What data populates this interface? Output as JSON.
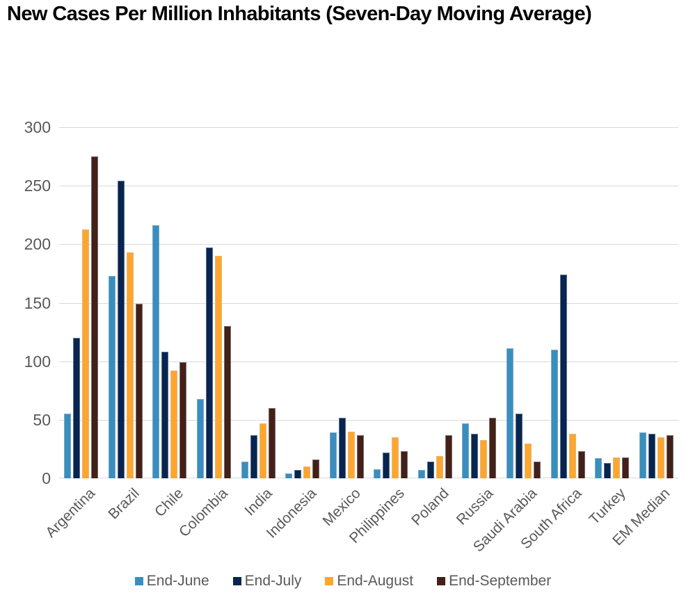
{
  "title": "New Cases Per Million Inhabitants (Seven-Day Moving Average)",
  "colors": {
    "gridline": "#d9d9d9",
    "axis_text": "#595959",
    "title_text": "#000000"
  },
  "chart_data": {
    "type": "bar",
    "title": "New Cases Per Million Inhabitants (Seven-Day Moving Average)",
    "categories": [
      "Argentina",
      "Brazil",
      "Chile",
      "Colombia",
      "India",
      "Indonesia",
      "Mexico",
      "Philippines",
      "Poland",
      "Russia",
      "Saudi Arabia",
      "South Africa",
      "Turkey",
      "EM Median"
    ],
    "series": [
      {
        "name": "End-June",
        "color": "#3a8ebe",
        "values": [
          55,
          173,
          216,
          68,
          14,
          4,
          39,
          8,
          7,
          47,
          111,
          110,
          17,
          39
        ]
      },
      {
        "name": "End-July",
        "color": "#07254f",
        "values": [
          120,
          254,
          108,
          197,
          37,
          7,
          52,
          22,
          14,
          38,
          55,
          174,
          13,
          38
        ]
      },
      {
        "name": "End-August",
        "color": "#fda62f",
        "values": [
          213,
          193,
          92,
          190,
          47,
          10,
          40,
          35,
          19,
          33,
          30,
          38,
          18,
          35
        ]
      },
      {
        "name": "End-September",
        "color": "#432018",
        "values": [
          275,
          149,
          99,
          130,
          60,
          16,
          37,
          23,
          37,
          52,
          14,
          23,
          18,
          37
        ]
      }
    ],
    "xlabel": "",
    "ylabel": "",
    "ylim": [
      0,
      300
    ],
    "yticks": [
      0,
      50,
      100,
      150,
      200,
      250,
      300
    ],
    "grid": true,
    "legend_position": "bottom"
  }
}
